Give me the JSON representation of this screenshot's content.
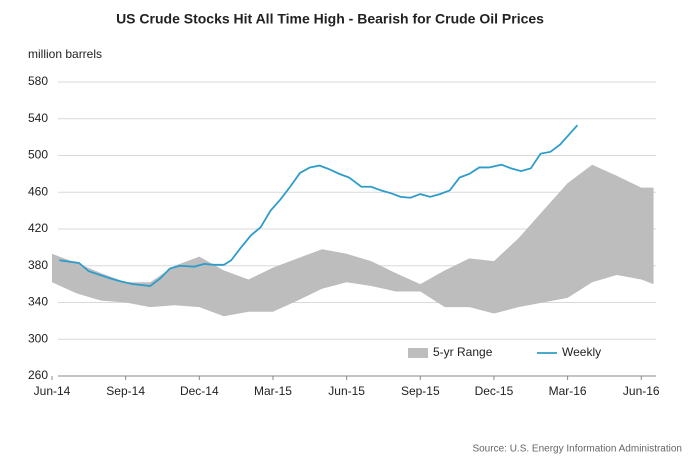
{
  "chart_data": {
    "type": "line",
    "title": "US Crude Stocks Hit  All Time High - Bearish for Crude Oil Prices",
    "ylabel": "million barrels",
    "source": "Source: U.S. Energy Information Administration",
    "xlim": [
      0,
      24.6
    ],
    "xticks": [
      {
        "value": 0,
        "label": "Jun-14"
      },
      {
        "value": 3,
        "label": "Sep-14"
      },
      {
        "value": 6,
        "label": "Dec-14"
      },
      {
        "value": 9,
        "label": "Mar-15"
      },
      {
        "value": 12,
        "label": "Jun-15"
      },
      {
        "value": 15,
        "label": "Sep-15"
      },
      {
        "value": 18,
        "label": "Dec-15"
      },
      {
        "value": 21,
        "label": "Mar-16"
      },
      {
        "value": 24,
        "label": "Jun-16"
      }
    ],
    "ylim": [
      260,
      580
    ],
    "yticks": [
      260,
      300,
      340,
      380,
      420,
      460,
      500,
      540,
      580
    ],
    "grid": true,
    "legend": "bottom",
    "series": [
      {
        "name": "5-yr Range",
        "type": "range",
        "color": "#bdbdbd",
        "x": [
          0,
          1,
          2,
          3,
          4,
          5,
          6,
          7,
          8,
          9,
          10,
          11,
          12,
          13,
          14,
          15,
          16,
          17,
          18,
          19,
          20,
          21,
          22,
          23,
          24,
          24.5
        ],
        "high": [
          393,
          383,
          372,
          362,
          362,
          380,
          390,
          375,
          365,
          378,
          388,
          398,
          393,
          385,
          372,
          360,
          375,
          388,
          385,
          410,
          440,
          470,
          490,
          478,
          465,
          465
        ],
        "low": [
          362,
          350,
          342,
          340,
          335,
          337,
          335,
          325,
          330,
          330,
          342,
          355,
          362,
          358,
          352,
          352,
          335,
          335,
          328,
          335,
          340,
          345,
          362,
          370,
          365,
          360
        ]
      },
      {
        "name": "Weekly",
        "type": "line",
        "color": "#2e9cca",
        "x": [
          0.3,
          1.1,
          1.5,
          2.4,
          2.8,
          3.3,
          4.0,
          4.4,
          4.8,
          5.2,
          5.8,
          6.2,
          6.6,
          7.0,
          7.3,
          7.7,
          8.1,
          8.5,
          8.9,
          9.3,
          9.7,
          10.1,
          10.5,
          10.9,
          11.3,
          11.7,
          12.1,
          12.6,
          13.0,
          13.4,
          13.8,
          14.2,
          14.6,
          15.0,
          15.4,
          15.8,
          16.2,
          16.6,
          17.0,
          17.4,
          17.8,
          18.3,
          18.7,
          19.1,
          19.5,
          19.9,
          20.3,
          20.7,
          21.1,
          21.4
        ],
        "values": [
          386,
          383,
          374,
          366,
          363,
          360,
          358,
          366,
          377,
          380,
          379,
          382,
          381,
          381,
          386,
          400,
          413,
          422,
          440,
          452,
          466,
          481,
          487,
          489,
          485,
          480,
          476,
          466,
          466,
          462,
          459,
          455,
          454,
          458,
          455,
          458,
          462,
          476,
          480,
          487,
          487,
          490,
          486,
          483,
          486,
          502,
          504,
          512,
          524,
          533
        ]
      }
    ]
  }
}
